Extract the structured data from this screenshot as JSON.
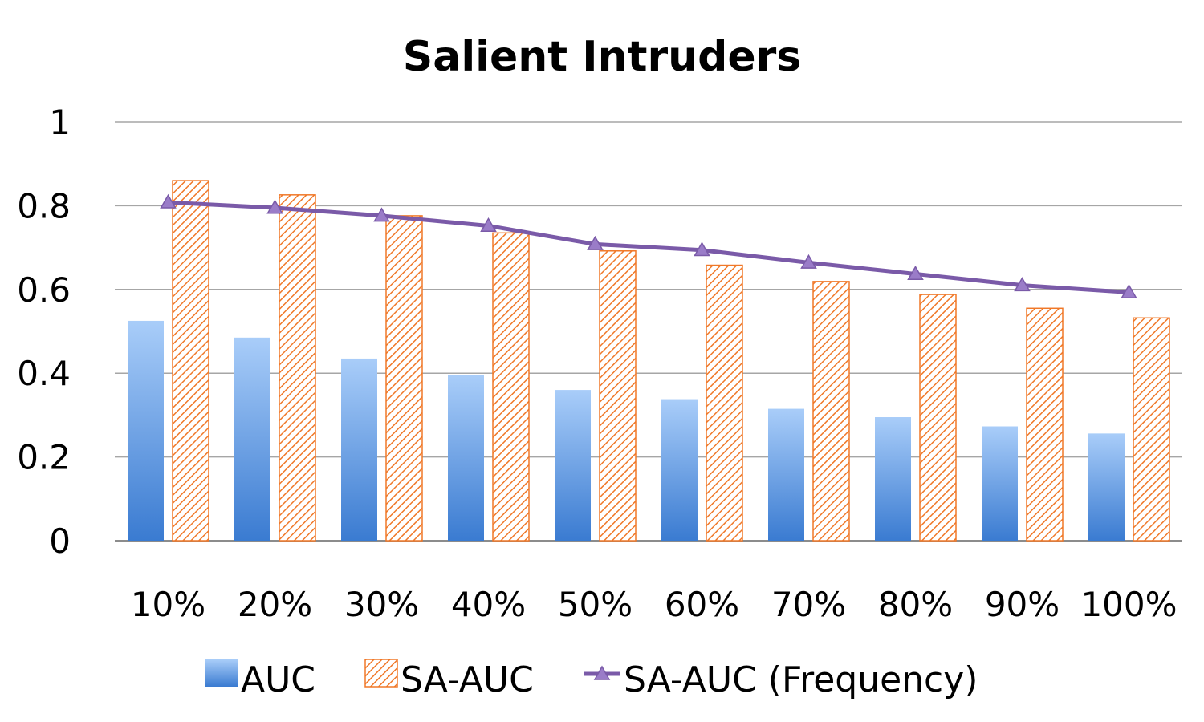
{
  "chart_data": {
    "type": "bar",
    "title": "Salient Intruders",
    "xlabel": "",
    "ylabel": "",
    "categories": [
      "10%",
      "20%",
      "30%",
      "40%",
      "50%",
      "60%",
      "70%",
      "80%",
      "90%",
      "100%"
    ],
    "ylim": [
      0,
      1
    ],
    "yticks": [
      "0",
      "0.2",
      "0.4",
      "0.6",
      "0.8",
      "1"
    ],
    "grid": true,
    "legend_position": "bottom",
    "series": [
      {
        "name": "AUC",
        "kind": "bar",
        "style": "gradient",
        "color": "#4a8ad8",
        "values": [
          0.525,
          0.485,
          0.435,
          0.395,
          0.36,
          0.338,
          0.315,
          0.295,
          0.273,
          0.256
        ]
      },
      {
        "name": "SA-AUC",
        "kind": "bar",
        "style": "hatched",
        "color": "#f07828",
        "values": [
          0.86,
          0.826,
          0.776,
          0.735,
          0.692,
          0.658,
          0.619,
          0.588,
          0.555,
          0.532
        ]
      },
      {
        "name": "SA-AUC (Frequency)",
        "kind": "line",
        "style": "triangle-markers",
        "color": "#7a5aa8",
        "values": [
          0.808,
          0.795,
          0.776,
          0.752,
          0.708,
          0.694,
          0.664,
          0.637,
          0.61,
          0.593
        ]
      }
    ]
  }
}
